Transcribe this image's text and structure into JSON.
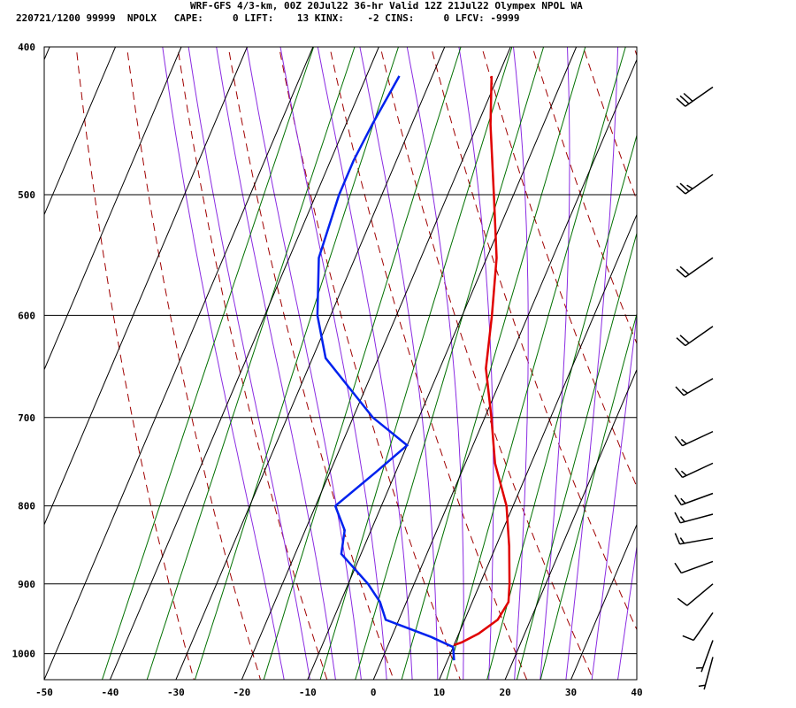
{
  "header": {
    "title": "WRF-GFS 4/3-km, 00Z 20Jul22 36-hr Valid 12Z 21Jul22 Olympex NPOL WA",
    "subtitle": "220721/1200 99999  NPOLX   CAPE:     0 LIFT:    13 KINX:    -2 CINS:     0 LFCV: -9999"
  },
  "colors": {
    "temperature": "#e00000",
    "dewpoint": "#0022ee",
    "dry_adiabat": "#a00000",
    "moist_adiabat": "#8a2be2",
    "mixing_ratio": "#007000",
    "grid": "#000000"
  },
  "chart_data": {
    "type": "skew-t",
    "x_ticks": [
      -50,
      -40,
      -30,
      -20,
      -10,
      0,
      10,
      20,
      30,
      40
    ],
    "y_ticks": [
      400,
      500,
      600,
      700,
      800,
      900,
      1000
    ],
    "xlim": [
      -50,
      40
    ],
    "ylim": [
      1040,
      400
    ],
    "series": [
      {
        "key": "temperature",
        "points": [
          [
            418,
            -21
          ],
          [
            450,
            -18
          ],
          [
            500,
            -13
          ],
          [
            550,
            -8.5
          ],
          [
            600,
            -5.5
          ],
          [
            650,
            -3
          ],
          [
            700,
            1
          ],
          [
            750,
            4.5
          ],
          [
            800,
            9
          ],
          [
            850,
            12
          ],
          [
            900,
            14.5
          ],
          [
            925,
            15.5
          ],
          [
            950,
            15
          ],
          [
            970,
            13
          ],
          [
            983,
            11
          ],
          [
            987,
            10
          ]
        ]
      },
      {
        "key": "dewpoint",
        "points": [
          [
            418,
            -35
          ],
          [
            450,
            -36
          ],
          [
            475,
            -36.5
          ],
          [
            500,
            -36.5
          ],
          [
            550,
            -35.5
          ],
          [
            600,
            -32
          ],
          [
            640,
            -28
          ],
          [
            700,
            -17
          ],
          [
            730,
            -10
          ],
          [
            760,
            -13
          ],
          [
            800,
            -17
          ],
          [
            830,
            -14
          ],
          [
            860,
            -13
          ],
          [
            900,
            -7
          ],
          [
            925,
            -4
          ],
          [
            950,
            -2
          ],
          [
            975,
            6
          ],
          [
            990,
            10
          ],
          [
            1010,
            11
          ]
        ]
      }
    ],
    "wind_barbs": [
      {
        "p": 425,
        "dir": 235,
        "speed": 30
      },
      {
        "p": 485,
        "dir": 235,
        "speed": 25
      },
      {
        "p": 550,
        "dir": 235,
        "speed": 20
      },
      {
        "p": 610,
        "dir": 235,
        "speed": 20
      },
      {
        "p": 660,
        "dir": 240,
        "speed": 15
      },
      {
        "p": 715,
        "dir": 245,
        "speed": 15
      },
      {
        "p": 750,
        "dir": 245,
        "speed": 15
      },
      {
        "p": 785,
        "dir": 250,
        "speed": 15
      },
      {
        "p": 810,
        "dir": 255,
        "speed": 15
      },
      {
        "p": 840,
        "dir": 260,
        "speed": 15
      },
      {
        "p": 870,
        "dir": 250,
        "speed": 10
      },
      {
        "p": 900,
        "dir": 230,
        "speed": 10
      },
      {
        "p": 940,
        "dir": 215,
        "speed": 10
      },
      {
        "p": 980,
        "dir": 200,
        "speed": 5
      },
      {
        "p": 1005,
        "dir": 195,
        "speed": 5
      }
    ]
  }
}
